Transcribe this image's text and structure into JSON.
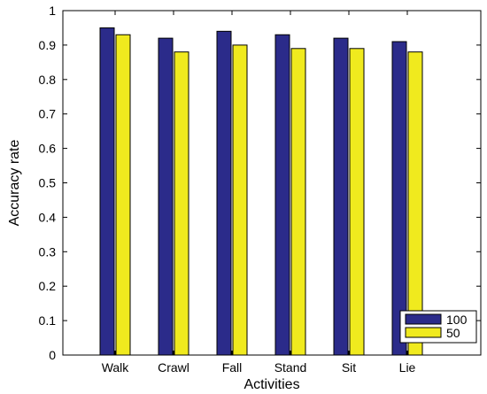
{
  "chart_data": {
    "type": "bar",
    "title": "",
    "xlabel": "Activities",
    "ylabel": "Accuracy rate",
    "ylim": [
      0,
      1
    ],
    "yticks": [
      "0",
      "0.1",
      "0.2",
      "0.3",
      "0.4",
      "0.5",
      "0.6",
      "0.7",
      "0.8",
      "0.9",
      "1"
    ],
    "categories": [
      "Walk",
      "Crawl",
      "Fall",
      "Stand",
      "Sit",
      "Lie"
    ],
    "series": [
      {
        "name": "100",
        "values": [
          0.95,
          0.92,
          0.94,
          0.93,
          0.92,
          0.91
        ],
        "color": "#2b2b8a"
      },
      {
        "name": "50",
        "values": [
          0.93,
          0.88,
          0.9,
          0.89,
          0.89,
          0.88
        ],
        "color": "#f0ea1e"
      }
    ],
    "grid": false,
    "legend_position": "bottom-right"
  }
}
